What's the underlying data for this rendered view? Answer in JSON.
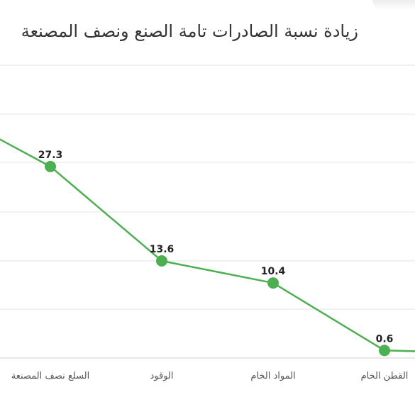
{
  "chart_data": {
    "type": "line",
    "title": "زيادة نسبة الصادرات تامة الصنع ونصف المصنعة",
    "xlabel": "",
    "ylabel": "",
    "categories": [
      "",
      "السلع نصف المصنعة",
      "الوقود",
      "المواد الخام",
      "القطن الخام",
      ""
    ],
    "values": [
      36,
      27.3,
      13.6,
      10.4,
      0.6,
      0.2
    ],
    "data_labels": [
      "",
      "27.3",
      "13.6",
      "10.4",
      "0.6",
      ""
    ],
    "ylim": [
      -0.5,
      42
    ],
    "grid": true,
    "line_color": "#4caf50",
    "marker_color": "#4caf50"
  }
}
